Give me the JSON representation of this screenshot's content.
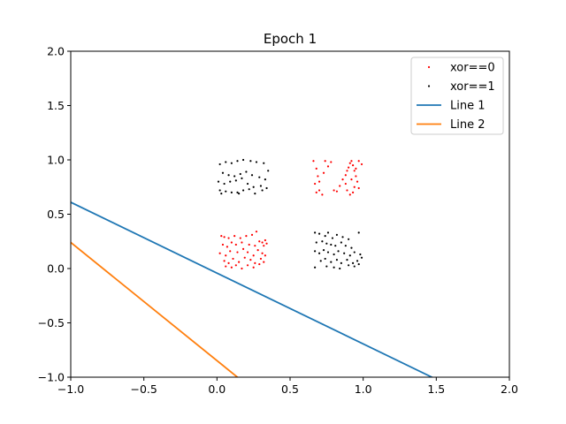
{
  "chart_data": {
    "type": "scatter",
    "title": "Epoch 1",
    "xlabel": "",
    "ylabel": "",
    "xlim": [
      -1.0,
      2.0
    ],
    "ylim": [
      -1.0,
      2.0
    ],
    "xticks": [
      -1.0,
      -0.5,
      0.0,
      0.5,
      1.0,
      1.5,
      2.0
    ],
    "yticks": [
      -1.0,
      -0.5,
      0.0,
      0.5,
      1.0,
      1.5,
      2.0
    ],
    "xtick_labels": [
      "−1.0",
      "−0.5",
      "0.0",
      "0.5",
      "1.0",
      "1.5",
      "2.0"
    ],
    "ytick_labels": [
      "−1.0",
      "−0.5",
      "0.0",
      "0.5",
      "1.0",
      "1.5",
      "2.0"
    ],
    "grid": false,
    "legend_position": "top-right",
    "series": [
      {
        "name": "xor==0",
        "kind": "scatter",
        "color": "#ff0000",
        "points": [
          [
            0.03,
            0.3
          ],
          [
            0.05,
            0.29
          ],
          [
            0.08,
            0.28
          ],
          [
            0.12,
            0.3
          ],
          [
            0.16,
            0.28
          ],
          [
            0.2,
            0.3
          ],
          [
            0.24,
            0.31
          ],
          [
            0.27,
            0.34
          ],
          [
            0.31,
            0.24
          ],
          [
            0.33,
            0.26
          ],
          [
            0.04,
            0.22
          ],
          [
            0.07,
            0.2
          ],
          [
            0.1,
            0.24
          ],
          [
            0.13,
            0.22
          ],
          [
            0.17,
            0.24
          ],
          [
            0.22,
            0.22
          ],
          [
            0.26,
            0.21
          ],
          [
            0.29,
            0.25
          ],
          [
            0.32,
            0.21
          ],
          [
            0.34,
            0.23
          ],
          [
            0.02,
            0.14
          ],
          [
            0.06,
            0.12
          ],
          [
            0.09,
            0.16
          ],
          [
            0.14,
            0.15
          ],
          [
            0.18,
            0.18
          ],
          [
            0.21,
            0.15
          ],
          [
            0.25,
            0.12
          ],
          [
            0.28,
            0.17
          ],
          [
            0.31,
            0.14
          ],
          [
            0.33,
            0.12
          ],
          [
            0.05,
            0.07
          ],
          [
            0.08,
            0.05
          ],
          [
            0.11,
            0.09
          ],
          [
            0.15,
            0.06
          ],
          [
            0.19,
            0.1
          ],
          [
            0.23,
            0.08
          ],
          [
            0.26,
            0.05
          ],
          [
            0.3,
            0.09
          ],
          [
            0.32,
            0.06
          ],
          [
            0.06,
            0.02
          ],
          [
            0.1,
            0.01
          ],
          [
            0.13,
            0.03
          ],
          [
            0.17,
            0.0
          ],
          [
            0.21,
            0.03
          ],
          [
            0.25,
            0.01
          ],
          [
            0.29,
            0.04
          ],
          [
            0.66,
            0.99
          ],
          [
            0.68,
            0.92
          ],
          [
            0.69,
            0.85
          ],
          [
            0.67,
            0.78
          ],
          [
            0.7,
            0.72
          ],
          [
            0.72,
            0.68
          ],
          [
            0.74,
            0.99
          ],
          [
            0.76,
            0.94
          ],
          [
            0.78,
            0.98
          ],
          [
            0.8,
            0.72
          ],
          [
            0.82,
            0.71
          ],
          [
            0.84,
            0.76
          ],
          [
            0.86,
            0.82
          ],
          [
            0.88,
            0.86
          ],
          [
            0.89,
            0.9
          ],
          [
            0.9,
            0.93
          ],
          [
            0.91,
            0.97
          ],
          [
            0.92,
            0.99
          ],
          [
            0.93,
            0.95
          ],
          [
            0.94,
            0.9
          ],
          [
            0.95,
            0.85
          ],
          [
            0.96,
            0.8
          ],
          [
            0.94,
            0.75
          ],
          [
            0.93,
            0.7
          ],
          [
            0.91,
            0.68
          ],
          [
            0.89,
            0.72
          ],
          [
            0.88,
            0.78
          ],
          [
            0.97,
            0.99
          ],
          [
            0.99,
            0.96
          ],
          [
            0.95,
            0.92
          ],
          [
            0.7,
            0.8
          ],
          [
            0.68,
            0.7
          ],
          [
            0.73,
            0.88
          ],
          [
            0.97,
            0.74
          ],
          [
            0.92,
            0.82
          ]
        ]
      },
      {
        "name": "xor==1",
        "kind": "scatter",
        "color": "#000000",
        "points": [
          [
            0.02,
            0.96
          ],
          [
            0.06,
            0.98
          ],
          [
            0.1,
            0.97
          ],
          [
            0.14,
            0.99
          ],
          [
            0.18,
            1.0
          ],
          [
            0.23,
            0.99
          ],
          [
            0.27,
            0.98
          ],
          [
            0.32,
            0.97
          ],
          [
            0.35,
            0.9
          ],
          [
            0.04,
            0.88
          ],
          [
            0.08,
            0.86
          ],
          [
            0.12,
            0.85
          ],
          [
            0.16,
            0.87
          ],
          [
            0.2,
            0.89
          ],
          [
            0.24,
            0.86
          ],
          [
            0.29,
            0.84
          ],
          [
            0.33,
            0.82
          ],
          [
            0.01,
            0.8
          ],
          [
            0.05,
            0.78
          ],
          [
            0.09,
            0.8
          ],
          [
            0.13,
            0.81
          ],
          [
            0.17,
            0.83
          ],
          [
            0.21,
            0.78
          ],
          [
            0.25,
            0.75
          ],
          [
            0.3,
            0.76
          ],
          [
            0.34,
            0.74
          ],
          [
            0.02,
            0.72
          ],
          [
            0.06,
            0.71
          ],
          [
            0.1,
            0.7
          ],
          [
            0.14,
            0.7
          ],
          [
            0.18,
            0.72
          ],
          [
            0.22,
            0.73
          ],
          [
            0.26,
            0.69
          ],
          [
            0.31,
            0.72
          ],
          [
            0.03,
            0.69
          ],
          [
            0.15,
            0.69
          ],
          [
            0.67,
            0.33
          ],
          [
            0.7,
            0.32
          ],
          [
            0.74,
            0.3
          ],
          [
            0.76,
            0.33
          ],
          [
            0.79,
            0.28
          ],
          [
            0.82,
            0.31
          ],
          [
            0.86,
            0.29
          ],
          [
            0.9,
            0.27
          ],
          [
            0.97,
            0.33
          ],
          [
            0.68,
            0.24
          ],
          [
            0.72,
            0.25
          ],
          [
            0.75,
            0.23
          ],
          [
            0.78,
            0.22
          ],
          [
            0.81,
            0.21
          ],
          [
            0.85,
            0.24
          ],
          [
            0.88,
            0.21
          ],
          [
            0.92,
            0.19
          ],
          [
            0.67,
            0.16
          ],
          [
            0.7,
            0.14
          ],
          [
            0.73,
            0.17
          ],
          [
            0.76,
            0.15
          ],
          [
            0.8,
            0.13
          ],
          [
            0.83,
            0.16
          ],
          [
            0.87,
            0.14
          ],
          [
            0.91,
            0.12
          ],
          [
            0.94,
            0.15
          ],
          [
            0.98,
            0.13
          ],
          [
            0.71,
            0.07
          ],
          [
            0.74,
            0.09
          ],
          [
            0.78,
            0.06
          ],
          [
            0.82,
            0.08
          ],
          [
            0.85,
            0.05
          ],
          [
            0.89,
            0.08
          ],
          [
            0.93,
            0.05
          ],
          [
            0.96,
            0.07
          ],
          [
            0.67,
            0.01
          ],
          [
            0.75,
            0.02
          ],
          [
            0.8,
            0.01
          ],
          [
            0.9,
            0.03
          ],
          [
            0.94,
            0.02
          ],
          [
            0.97,
            0.04
          ],
          [
            0.99,
            0.1
          ],
          [
            0.84,
            0.0
          ]
        ]
      },
      {
        "name": "Line 1",
        "kind": "line",
        "color": "#1f77b4",
        "x": [
          -1.0,
          1.47
        ],
        "y": [
          0.61,
          -1.0
        ]
      },
      {
        "name": "Line 2",
        "kind": "line",
        "color": "#ff7f0e",
        "x": [
          -1.0,
          0.14
        ],
        "y": [
          0.24,
          -1.0
        ]
      }
    ]
  }
}
